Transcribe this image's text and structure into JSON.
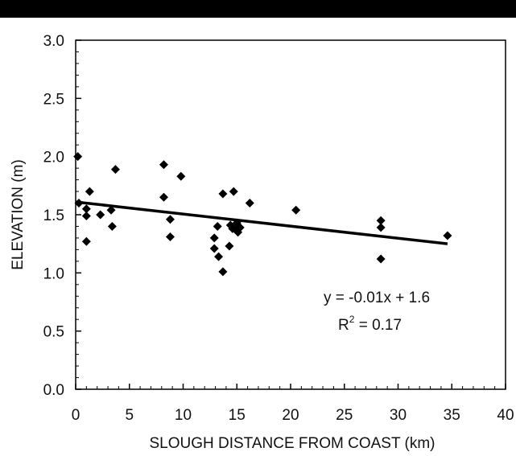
{
  "chart_data": {
    "type": "scatter",
    "xlabel": "SLOUGH DISTANCE FROM COAST (km)",
    "ylabel": "ELEVATION (m)",
    "xlim": [
      0,
      40
    ],
    "ylim": [
      0,
      3.0
    ],
    "x_ticks": [
      "0",
      "5",
      "10",
      "15",
      "20",
      "25",
      "30",
      "35",
      "40"
    ],
    "y_ticks": [
      "0.0",
      "0.5",
      "1.0",
      "1.5",
      "2.0",
      "2.5",
      "3.0"
    ],
    "grid": false,
    "points": [
      {
        "x": 0.2,
        "y": 2.0
      },
      {
        "x": 0.3,
        "y": 1.6
      },
      {
        "x": 1.0,
        "y": 1.27
      },
      {
        "x": 1.0,
        "y": 1.49
      },
      {
        "x": 1.0,
        "y": 1.55
      },
      {
        "x": 1.3,
        "y": 1.7
      },
      {
        "x": 2.3,
        "y": 1.5
      },
      {
        "x": 3.3,
        "y": 1.54
      },
      {
        "x": 3.4,
        "y": 1.4
      },
      {
        "x": 3.7,
        "y": 1.89
      },
      {
        "x": 8.2,
        "y": 1.93
      },
      {
        "x": 8.2,
        "y": 1.65
      },
      {
        "x": 8.8,
        "y": 1.46
      },
      {
        "x": 8.8,
        "y": 1.31
      },
      {
        "x": 9.8,
        "y": 1.83
      },
      {
        "x": 12.9,
        "y": 1.3
      },
      {
        "x": 12.9,
        "y": 1.21
      },
      {
        "x": 13.2,
        "y": 1.4
      },
      {
        "x": 13.3,
        "y": 1.14
      },
      {
        "x": 13.7,
        "y": 1.68
      },
      {
        "x": 13.7,
        "y": 1.01
      },
      {
        "x": 14.3,
        "y": 1.23
      },
      {
        "x": 14.4,
        "y": 1.41
      },
      {
        "x": 14.6,
        "y": 1.38
      },
      {
        "x": 14.7,
        "y": 1.7
      },
      {
        "x": 14.9,
        "y": 1.38
      },
      {
        "x": 15.0,
        "y": 1.43
      },
      {
        "x": 15.1,
        "y": 1.35
      },
      {
        "x": 15.3,
        "y": 1.39
      },
      {
        "x": 16.2,
        "y": 1.6
      },
      {
        "x": 20.5,
        "y": 1.54
      },
      {
        "x": 28.4,
        "y": 1.45
      },
      {
        "x": 28.4,
        "y": 1.39
      },
      {
        "x": 28.4,
        "y": 1.12
      },
      {
        "x": 34.6,
        "y": 1.32
      }
    ],
    "trendline": {
      "x_start": 0,
      "y_start": 1.61,
      "x_end": 34.6,
      "y_end": 1.25
    },
    "equation": "y = -0.01x + 1.6",
    "r2_base": "R",
    "r2_sup": "2",
    "r2_rest": " = 0.17"
  }
}
